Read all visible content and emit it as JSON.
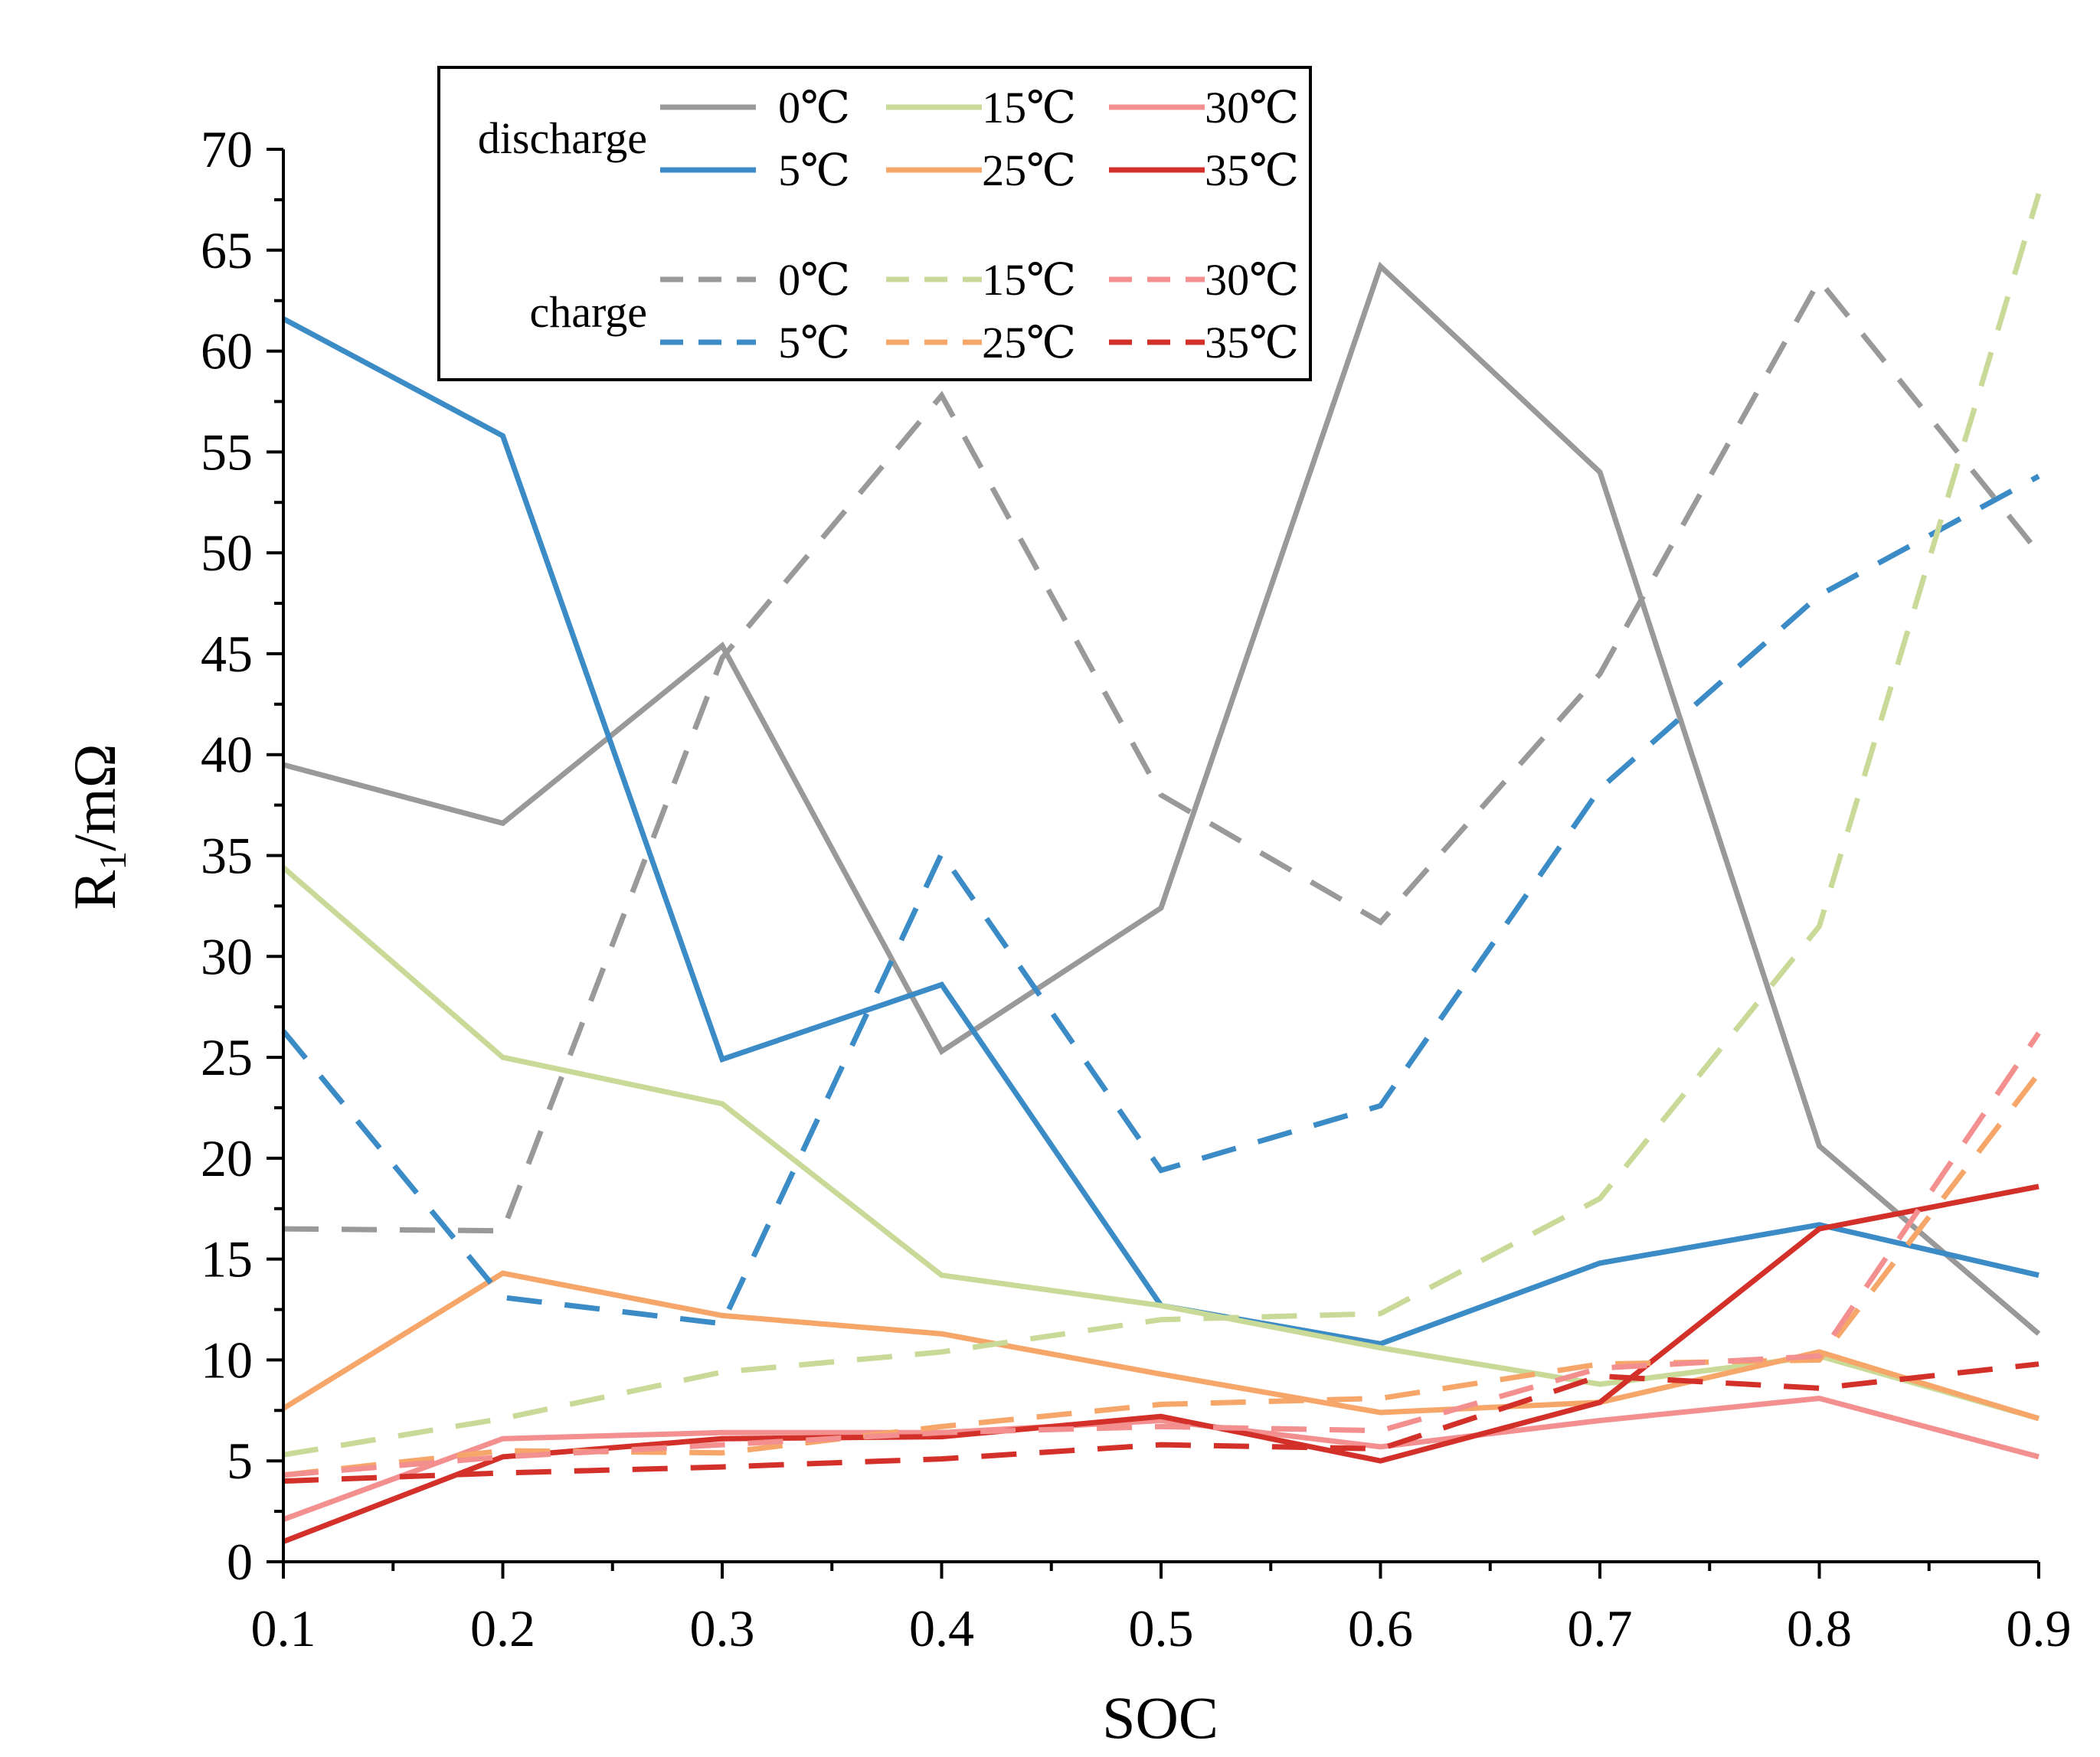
{
  "chart_data": {
    "type": "line",
    "title": "",
    "xlabel": "SOC",
    "ylabel": "R1/mΩ",
    "ylabel_main": "R",
    "ylabel_sub": "1",
    "ylabel_rest": "/mΩ",
    "xlim": [
      0.1,
      0.9
    ],
    "ylim": [
      0,
      70
    ],
    "x": [
      0.1,
      0.2,
      0.3,
      0.4,
      0.5,
      0.6,
      0.7,
      0.8,
      0.9
    ],
    "x_tick_labels": [
      "0.1",
      "0.2",
      "0.3",
      "0.4",
      "0.5",
      "0.6",
      "0.7",
      "0.8",
      "0.9"
    ],
    "y_ticks": [
      0,
      5,
      10,
      15,
      20,
      25,
      30,
      35,
      40,
      45,
      50,
      55,
      60,
      65,
      70
    ],
    "y_tick_labels": [
      "0",
      "5",
      "10",
      "15",
      "20",
      "25",
      "30",
      "35",
      "40",
      "45",
      "50",
      "55",
      "60",
      "65",
      "70"
    ],
    "grid": false,
    "legend_position": "top",
    "legend_groups": [
      {
        "label": "discharge",
        "style": "solid"
      },
      {
        "label": "charge",
        "style": "dashed"
      }
    ],
    "series": [
      {
        "name": "0℃",
        "group": "discharge",
        "style": "solid",
        "color": "#999999",
        "values": [
          39.5,
          36.6,
          45.4,
          25.3,
          32.4,
          64.2,
          54.0,
          20.6,
          11.3
        ]
      },
      {
        "name": "5℃",
        "group": "discharge",
        "style": "solid",
        "color": "#3b8bc6",
        "values": [
          61.6,
          55.8,
          24.9,
          28.6,
          12.7,
          10.8,
          14.8,
          16.7,
          14.2
        ]
      },
      {
        "name": "15℃",
        "group": "discharge",
        "style": "solid",
        "color": "#c9d998",
        "values": [
          34.4,
          25.0,
          22.7,
          14.2,
          12.7,
          10.6,
          8.8,
          10.2,
          7.1
        ]
      },
      {
        "name": "25℃",
        "group": "discharge",
        "style": "solid",
        "color": "#f6a669",
        "values": [
          7.6,
          14.3,
          12.2,
          11.3,
          9.3,
          7.4,
          7.9,
          10.4,
          7.1
        ]
      },
      {
        "name": "30℃",
        "group": "discharge",
        "style": "solid",
        "color": "#f38f8f",
        "values": [
          2.1,
          6.1,
          6.4,
          6.4,
          7.0,
          5.7,
          7.0,
          8.1,
          5.2
        ]
      },
      {
        "name": "35℃",
        "group": "discharge",
        "style": "solid",
        "color": "#d4302a",
        "values": [
          1.0,
          5.2,
          6.1,
          6.2,
          7.2,
          5.0,
          7.9,
          16.5,
          18.6
        ]
      },
      {
        "name": "0℃",
        "group": "charge",
        "style": "dashed",
        "color": "#999999",
        "values": [
          16.5,
          16.4,
          44.8,
          57.8,
          38.0,
          31.7,
          44.0,
          63.5,
          50.0
        ]
      },
      {
        "name": "5℃",
        "group": "charge",
        "style": "dashed",
        "color": "#3b8bc6",
        "values": [
          26.3,
          13.1,
          11.8,
          35.1,
          19.4,
          22.6,
          38.3,
          47.9,
          53.8
        ]
      },
      {
        "name": "15℃",
        "group": "charge",
        "style": "dashed",
        "color": "#c9d998",
        "values": [
          5.3,
          7.1,
          9.4,
          10.4,
          12.0,
          12.3,
          18.0,
          31.5,
          67.8
        ]
      },
      {
        "name": "25℃",
        "group": "charge",
        "style": "dashed",
        "color": "#f6a669",
        "values": [
          4.3,
          5.5,
          5.4,
          6.7,
          7.8,
          8.1,
          9.8,
          10.0,
          24.2
        ]
      },
      {
        "name": "30℃",
        "group": "charge",
        "style": "dashed",
        "color": "#f38f8f",
        "values": [
          4.3,
          5.2,
          5.8,
          6.4,
          6.7,
          6.5,
          9.6,
          10.2,
          26.2
        ]
      },
      {
        "name": "35℃",
        "group": "charge",
        "style": "dashed",
        "color": "#d4302a",
        "values": [
          4.0,
          4.4,
          4.7,
          5.1,
          5.8,
          5.6,
          9.2,
          8.6,
          9.8
        ]
      }
    ]
  }
}
